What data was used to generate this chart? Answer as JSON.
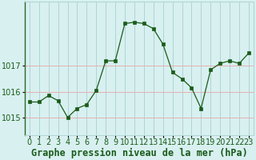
{
  "x": [
    0,
    1,
    2,
    3,
    4,
    5,
    6,
    7,
    8,
    9,
    10,
    11,
    12,
    13,
    14,
    15,
    16,
    17,
    18,
    19,
    20,
    21,
    22,
    23
  ],
  "y": [
    1015.6,
    1015.6,
    1015.85,
    1015.65,
    1015.0,
    1015.35,
    1015.5,
    1016.05,
    1017.2,
    1017.2,
    1018.65,
    1018.7,
    1018.65,
    1018.45,
    1017.85,
    1016.75,
    1016.5,
    1016.15,
    1015.35,
    1016.85,
    1017.1,
    1017.2,
    1017.1,
    1017.5
  ],
  "line_color": "#1a5c1a",
  "marker_color": "#1a5c1a",
  "bg_color": "#d8f0f0",
  "grid_color": "#b0d4d4",
  "xlabel": "Graphe pression niveau de la mer (hPa)",
  "xlabel_color": "#1a5c1a",
  "yticks": [
    1015,
    1016,
    1017
  ],
  "ylim": [
    1014.3,
    1019.5
  ],
  "xlim": [
    -0.5,
    23.5
  ],
  "tick_label_color": "#1a5c1a",
  "xlabel_fontsize": 8.5,
  "tick_fontsize": 7
}
